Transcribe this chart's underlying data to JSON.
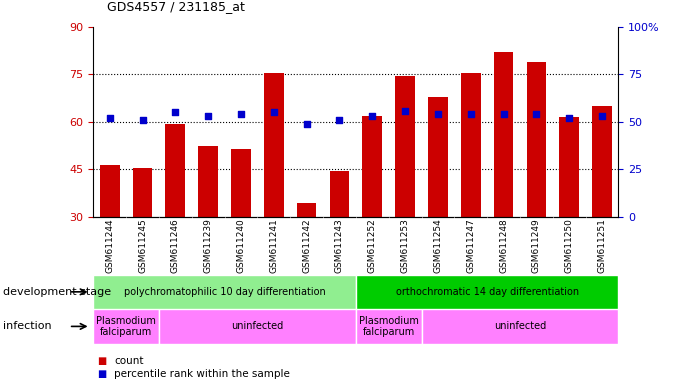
{
  "title": "GDS4557 / 231185_at",
  "samples": [
    "GSM611244",
    "GSM611245",
    "GSM611246",
    "GSM611239",
    "GSM611240",
    "GSM611241",
    "GSM611242",
    "GSM611243",
    "GSM611252",
    "GSM611253",
    "GSM611254",
    "GSM611247",
    "GSM611248",
    "GSM611249",
    "GSM611250",
    "GSM611251"
  ],
  "bar_heights": [
    46.5,
    45.5,
    59.5,
    52.5,
    51.5,
    75.5,
    34.5,
    44.5,
    62.0,
    74.5,
    68.0,
    75.5,
    82.0,
    79.0,
    61.5,
    65.0
  ],
  "dot_percentiles": [
    52,
    51,
    55,
    53,
    54,
    55,
    49,
    51,
    53,
    56,
    54,
    54,
    54,
    54,
    52,
    53
  ],
  "ylim_left": [
    30,
    90
  ],
  "ylim_right": [
    0,
    100
  ],
  "yticks_left": [
    30,
    45,
    60,
    75,
    90
  ],
  "yticks_right": [
    0,
    25,
    50,
    75,
    100
  ],
  "bar_color": "#cc0000",
  "dot_color": "#0000cc",
  "background_color": "#ffffff",
  "grid_color": "#000000",
  "dev_stage_label": "development stage",
  "infection_label": "infection",
  "dev_stage_groups": [
    {
      "label": "polychromatophilic 10 day differentiation",
      "start": 0,
      "end": 7,
      "color": "#90EE90"
    },
    {
      "label": "orthochromatic 14 day differentiation",
      "start": 8,
      "end": 15,
      "color": "#00CC00"
    }
  ],
  "infection_groups": [
    {
      "label": "Plasmodium\nfalciparum",
      "start": 0,
      "end": 1,
      "color": "#FF80FF"
    },
    {
      "label": "uninfected",
      "start": 2,
      "end": 7,
      "color": "#FF80FF"
    },
    {
      "label": "Plasmodium\nfalciparum",
      "start": 8,
      "end": 9,
      "color": "#FF80FF"
    },
    {
      "label": "uninfected",
      "start": 10,
      "end": 15,
      "color": "#FF80FF"
    }
  ],
  "legend_count_color": "#cc0000",
  "legend_pct_color": "#0000cc",
  "right_axis_color": "#0000cc",
  "left_axis_color": "#cc0000"
}
